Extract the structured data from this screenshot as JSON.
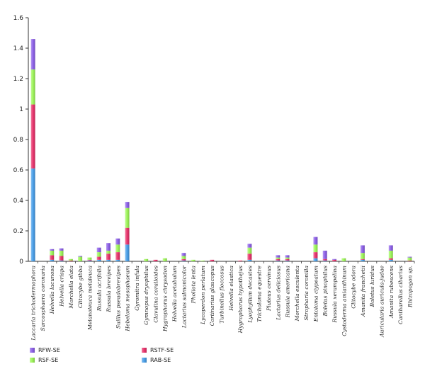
{
  "chart_data": {
    "type": "bar",
    "stacked": true,
    "title": "",
    "xlabel": "",
    "ylabel": "",
    "ylim": [
      0,
      1.6
    ],
    "yticks": [
      "0",
      "0.2",
      "0.4",
      "0.6",
      "0.8",
      "1",
      "1.2",
      "1.4",
      "1.6"
    ],
    "grid": false,
    "legend_position": "bottom-left",
    "categories": [
      "Laccaria trichodermophora",
      "Sarcosphaera coronaria",
      "Helvella lacunosa",
      "Helvella crispa",
      "Morchella elata",
      "Clitocybe gibba",
      "Melanoleuca melaleuca",
      "Russula acrifolia",
      "Russula brevipes",
      "Suillus pseudobrevipes",
      "Hebeloma mesophaeum",
      "Gyromitra infula",
      "Gymnopus dryophilus",
      "Clavulina coralloides",
      "Hygrophorus chrysodon",
      "Helvella acetabulum",
      "Lactarius salmonicolor",
      "Pholiota lenta",
      "Lycoperdon perlatum",
      "Cortinarius glaucopus",
      "Turbinellus floccosus",
      "Helvella elastica",
      "Hygrophorus hypothejus",
      "Lyophyllum decastes",
      "Tricholoma equestre",
      "Pluteus cervinus",
      "Lactarius deliciosus",
      "Russula americana",
      "Morchella esculenta",
      "Stropharia coronilla",
      "Entoloma clypeatum",
      "Boletus pinophilus",
      "Russula xerampelina",
      "Cystoderma amianthinum",
      "Clitocybe odora",
      "Amanita franchetii",
      "Boletus luridus",
      "Auricularia auricula-judae",
      "Amanita rubescens",
      "Cantharellus cibarius",
      "Rhizopogon sp."
    ],
    "series": [
      {
        "name": "RAB-SE",
        "color": "#4a9fe8",
        "values": [
          0.61,
          0,
          0.01,
          0.005,
          0,
          0,
          0.005,
          0.01,
          0.01,
          0.01,
          0.11,
          0,
          0,
          0,
          0,
          0,
          0.005,
          0,
          0,
          0,
          0,
          0,
          0,
          0.01,
          0,
          0,
          0.005,
          0.005,
          0,
          0,
          0.02,
          0.005,
          0,
          0,
          0,
          0.01,
          0,
          0,
          0.01,
          0,
          0
        ]
      },
      {
        "name": "RSTF-SE",
        "color": "#e8356d",
        "values": [
          0.42,
          0,
          0.03,
          0.03,
          0.005,
          0,
          0.005,
          0.02,
          0.04,
          0.05,
          0.11,
          0,
          0,
          0.01,
          0,
          0,
          0.01,
          0,
          0,
          0.01,
          0,
          0,
          0.005,
          0.04,
          0,
          0,
          0.01,
          0.01,
          0,
          0,
          0.04,
          0.01,
          0.01,
          0,
          0,
          0.005,
          0,
          0,
          0.01,
          0,
          0.005
        ]
      },
      {
        "name": "RSF-SE",
        "color": "#9ef55a",
        "values": [
          0.23,
          0,
          0.03,
          0.035,
          0.01,
          0.03,
          0.015,
          0.03,
          0.02,
          0.05,
          0.13,
          0,
          0.015,
          0,
          0.02,
          0,
          0.02,
          0.01,
          0.005,
          0,
          0,
          0,
          0,
          0.04,
          0,
          0,
          0.01,
          0.01,
          0,
          0,
          0.05,
          0,
          0,
          0.02,
          0,
          0.04,
          0,
          0,
          0.05,
          0,
          0.02
        ]
      },
      {
        "name": "RFW-SE",
        "color": "#8e62e8",
        "values": [
          0.2,
          0,
          0.01,
          0.015,
          0,
          0.005,
          0,
          0.03,
          0.05,
          0.04,
          0.04,
          0,
          0,
          0,
          0,
          0,
          0.02,
          0,
          0,
          0,
          0,
          0,
          0,
          0.025,
          0,
          0,
          0.015,
          0.015,
          0,
          0,
          0.05,
          0.055,
          0.005,
          0,
          0,
          0.05,
          0,
          0,
          0.035,
          0,
          0.005
        ]
      }
    ],
    "legend_order": [
      "RFW-SE",
      "RSTF-SE",
      "RSF-SE",
      "RAB-SE"
    ]
  }
}
